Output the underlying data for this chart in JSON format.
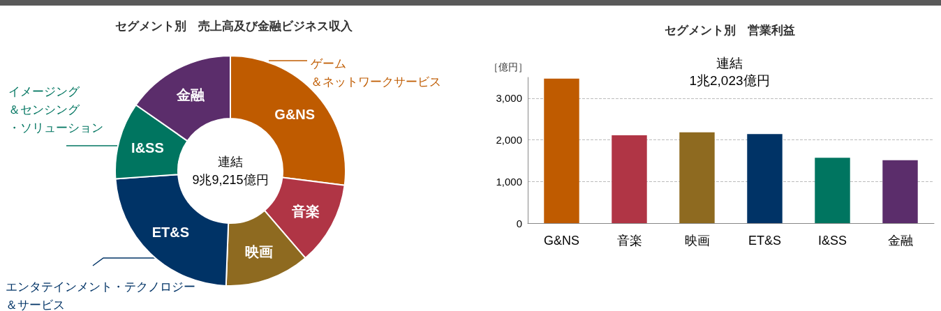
{
  "chart_data": [
    {
      "type": "donut",
      "title": "セグメント別　売上高及び金融ビジネス収入",
      "categories": [
        "G&NS",
        "音楽",
        "映画",
        "ET&S",
        "I&SS",
        "金融"
      ],
      "values": [
        27,
        11.7,
        11.9,
        23.3,
        10.8,
        15.3
      ],
      "colors": [
        "#bf5b00",
        "#b03545",
        "#8e6a20",
        "#003366",
        "#007560",
        "#5b2d6b"
      ],
      "annotations": [
        "連結\n9兆9,215億円",
        "ゲーム＆ネットワークサービス",
        "イメージング＆センシング・ソリューション",
        "エンタテインメント・テクノロジー＆サービス"
      ]
    },
    {
      "type": "bar",
      "title": "セグメント別　営業利益",
      "ylabel": "［億円］",
      "categories": [
        "G&NS",
        "音楽",
        "映画",
        "ET&S",
        "I&SS",
        "金融"
      ],
      "values": [
        3470,
        2110,
        2180,
        2140,
        1570,
        1510
      ],
      "colors": [
        "#bf5b00",
        "#b03545",
        "#8e6a20",
        "#003366",
        "#007560",
        "#5b2d6b"
      ],
      "ylim": [
        0,
        3500
      ],
      "yticks": [
        0,
        {
          "value": 1000,
          "label": "1,000"
        },
        {
          "value": 2000,
          "label": "2,000"
        },
        {
          "value": 3000,
          "label": "3,000"
        }
      ],
      "grid": "y",
      "annotations": [
        "連結\n1兆2,023億円"
      ]
    }
  ]
}
